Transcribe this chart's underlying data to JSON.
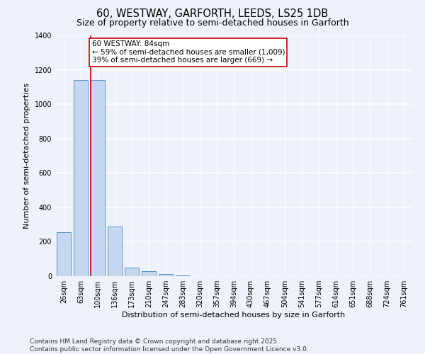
{
  "title_line1": "60, WESTWAY, GARFORTH, LEEDS, LS25 1DB",
  "title_line2": "Size of property relative to semi-detached houses in Garforth",
  "xlabel": "Distribution of semi-detached houses by size in Garforth",
  "ylabel": "Number of semi-detached properties",
  "categories": [
    "26sqm",
    "63sqm",
    "100sqm",
    "136sqm",
    "173sqm",
    "210sqm",
    "247sqm",
    "283sqm",
    "320sqm",
    "357sqm",
    "394sqm",
    "430sqm",
    "467sqm",
    "504sqm",
    "541sqm",
    "577sqm",
    "614sqm",
    "651sqm",
    "688sqm",
    "724sqm",
    "761sqm"
  ],
  "values": [
    255,
    1140,
    1140,
    290,
    50,
    28,
    12,
    3,
    2,
    1,
    1,
    0,
    0,
    0,
    0,
    0,
    0,
    0,
    0,
    0,
    0
  ],
  "bar_color": "#c5d8f0",
  "bar_edge_color": "#5b8ec4",
  "background_color": "#eef2fb",
  "grid_color": "#ffffff",
  "property_line_x": 1.57,
  "property_label": "60 WESTWAY: 84sqm",
  "annotation_line1": "← 59% of semi-detached houses are smaller (1,009)",
  "annotation_line2": "39% of semi-detached houses are larger (669) →",
  "annotation_box_color": "#ffffff",
  "annotation_box_edge": "#cc0000",
  "red_line_color": "#cc0000",
  "ylim": [
    0,
    1400
  ],
  "yticks": [
    0,
    200,
    400,
    600,
    800,
    1000,
    1200,
    1400
  ],
  "footer_line1": "Contains HM Land Registry data © Crown copyright and database right 2025.",
  "footer_line2": "Contains public sector information licensed under the Open Government Licence v3.0.",
  "title_fontsize": 10.5,
  "subtitle_fontsize": 9,
  "axis_label_fontsize": 8,
  "tick_fontsize": 7,
  "annotation_fontsize": 7.5,
  "footer_fontsize": 6.5
}
